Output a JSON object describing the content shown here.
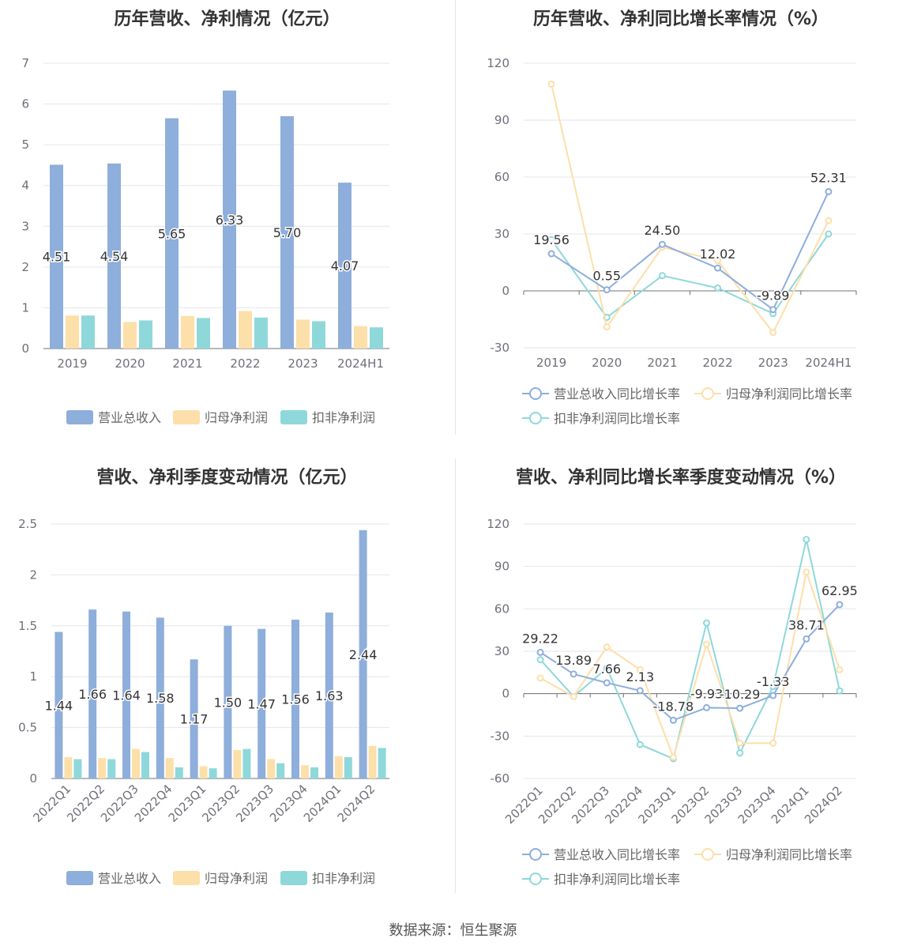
{
  "colors": {
    "revenue": "#8eaedb",
    "netprofit": "#fddfa9",
    "deducted": "#8ed8da",
    "axis": "#6e7079",
    "grid": "#e3e6ee",
    "label": "#333333"
  },
  "legend_bar": [
    "营业总收入",
    "归母净利润",
    "扣非净利润"
  ],
  "legend_line": [
    "营业总收入同比增长率",
    "归母净利润同比增长率",
    "扣非净利润同比增长率"
  ],
  "source": "数据来源：恒生聚源",
  "chart_data": [
    {
      "type": "bar",
      "title": "历年营收、净利情况（亿元）",
      "categories": [
        "2019",
        "2020",
        "2021",
        "2022",
        "2023",
        "2024H1"
      ],
      "ylim": [
        0,
        7
      ],
      "yticks": [
        0,
        1,
        2,
        3,
        4,
        5,
        6,
        7
      ],
      "grid": true,
      "legend_position": "bottom",
      "series": [
        {
          "name": "营业总收入",
          "values": [
            4.51,
            4.54,
            5.65,
            6.33,
            5.7,
            4.07
          ],
          "labels": [
            "4.51",
            "4.54",
            "5.65",
            "6.33",
            "5.70",
            "4.07"
          ]
        },
        {
          "name": "归母净利润",
          "values": [
            0.81,
            0.65,
            0.8,
            0.92,
            0.71,
            0.55
          ]
        },
        {
          "name": "扣非净利润",
          "values": [
            0.81,
            0.69,
            0.75,
            0.76,
            0.67,
            0.52
          ]
        }
      ]
    },
    {
      "type": "line",
      "title": "历年营收、净利同比增长率情况（%）",
      "categories": [
        "2019",
        "2020",
        "2021",
        "2022",
        "2023",
        "2024H1"
      ],
      "ylim": [
        -30,
        120
      ],
      "yticks": [
        -30,
        0,
        30,
        60,
        90,
        120
      ],
      "grid": true,
      "legend_position": "bottom",
      "series": [
        {
          "name": "营业总收入同比增长率",
          "values": [
            19.56,
            0.55,
            24.5,
            12.02,
            -9.89,
            52.31
          ],
          "labels": [
            "19.56",
            "0.55",
            "24.50",
            "12.02",
            "-9.89",
            "52.31"
          ]
        },
        {
          "name": "归母净利润同比增长率",
          "values": [
            109,
            -19,
            23,
            16,
            -22,
            37
          ]
        },
        {
          "name": "扣非净利润同比增长率",
          "values": [
            27,
            -14,
            8,
            1.5,
            -12,
            30
          ]
        }
      ]
    },
    {
      "type": "bar",
      "title": "营收、净利季度变动情况（亿元）",
      "categories": [
        "2022Q1",
        "2022Q2",
        "2022Q3",
        "2022Q4",
        "2023Q1",
        "2023Q2",
        "2023Q3",
        "2023Q4",
        "2024Q1",
        "2024Q2"
      ],
      "ylim": [
        0,
        2.5
      ],
      "yticks": [
        0,
        0.5,
        1,
        1.5,
        2,
        2.5
      ],
      "grid": true,
      "legend_position": "bottom",
      "series": [
        {
          "name": "营业总收入",
          "values": [
            1.44,
            1.66,
            1.64,
            1.58,
            1.17,
            1.5,
            1.47,
            1.56,
            1.63,
            2.44
          ],
          "labels": [
            "1.44",
            "1.66",
            "1.64",
            "1.58",
            "1.17",
            "1.50",
            "1.47",
            "1.56",
            "1.63",
            "2.44"
          ]
        },
        {
          "name": "归母净利润",
          "values": [
            0.21,
            0.2,
            0.29,
            0.2,
            0.12,
            0.28,
            0.19,
            0.13,
            0.22,
            0.32
          ]
        },
        {
          "name": "扣非净利润",
          "values": [
            0.19,
            0.19,
            0.26,
            0.11,
            0.1,
            0.29,
            0.15,
            0.11,
            0.21,
            0.3
          ]
        }
      ]
    },
    {
      "type": "line",
      "title": "营收、净利同比增长率季度变动情况（%）",
      "categories": [
        "2022Q1",
        "2022Q2",
        "2022Q3",
        "2022Q4",
        "2023Q1",
        "2023Q2",
        "2023Q3",
        "2023Q4",
        "2024Q1",
        "2024Q2"
      ],
      "ylim": [
        -60,
        120
      ],
      "yticks": [
        -60,
        -30,
        0,
        30,
        60,
        90,
        120
      ],
      "grid": true,
      "legend_position": "bottom",
      "series": [
        {
          "name": "营业总收入同比增长率",
          "values": [
            29.22,
            13.89,
            7.66,
            2.13,
            -18.78,
            -9.93,
            -10.29,
            -1.33,
            38.71,
            62.95
          ],
          "labels": [
            "29.22",
            "13.89",
            "7.66",
            "2.13",
            "-18.78",
            "-9.93",
            "-10.29",
            "-1.33",
            "38.71",
            "62.95"
          ]
        },
        {
          "name": "归母净利润同比增长率",
          "values": [
            11,
            -2,
            33,
            17,
            -45,
            35,
            -35,
            -35,
            86,
            17
          ]
        },
        {
          "name": "扣非净利润同比增长率",
          "values": [
            24,
            -2,
            18,
            -36,
            -46,
            50,
            -42,
            5,
            109,
            2
          ]
        }
      ]
    }
  ]
}
